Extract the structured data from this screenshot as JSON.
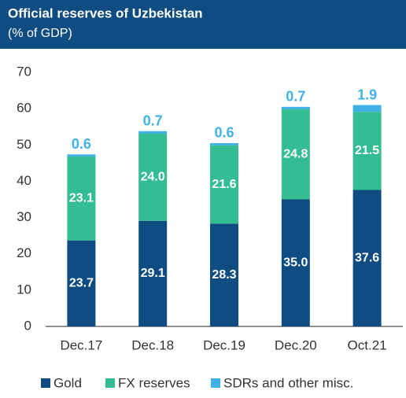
{
  "chart_data": {
    "type": "stacked_bar",
    "title": "Official reserves of Uzbekistan",
    "subtitle": "(% of GDP)",
    "categories": [
      "Dec.17",
      "Dec.18",
      "Dec.19",
      "Dec.20",
      "Oct.21"
    ],
    "series": [
      {
        "name": "Gold",
        "color": "#0f4c81",
        "values": [
          23.7,
          29.1,
          28.3,
          35.0,
          37.6
        ],
        "value_labels": [
          "23.7",
          "29.1",
          "28.3",
          "35.0",
          "37.6"
        ]
      },
      {
        "name": "FX reserves",
        "color": "#34bc92",
        "values": [
          23.1,
          24.0,
          21.6,
          24.8,
          21.5
        ],
        "value_labels": [
          "23.1",
          "24.0",
          "21.6",
          "24.8",
          "21.5"
        ]
      },
      {
        "name": "SDRs and other misc.",
        "color": "#3fb1e5",
        "values": [
          0.6,
          0.7,
          0.6,
          0.7,
          1.9
        ]
      }
    ],
    "ylim": [
      0,
      70
    ],
    "yticks": [
      0,
      10,
      20,
      30,
      40,
      50,
      60,
      70
    ],
    "grid": false
  }
}
